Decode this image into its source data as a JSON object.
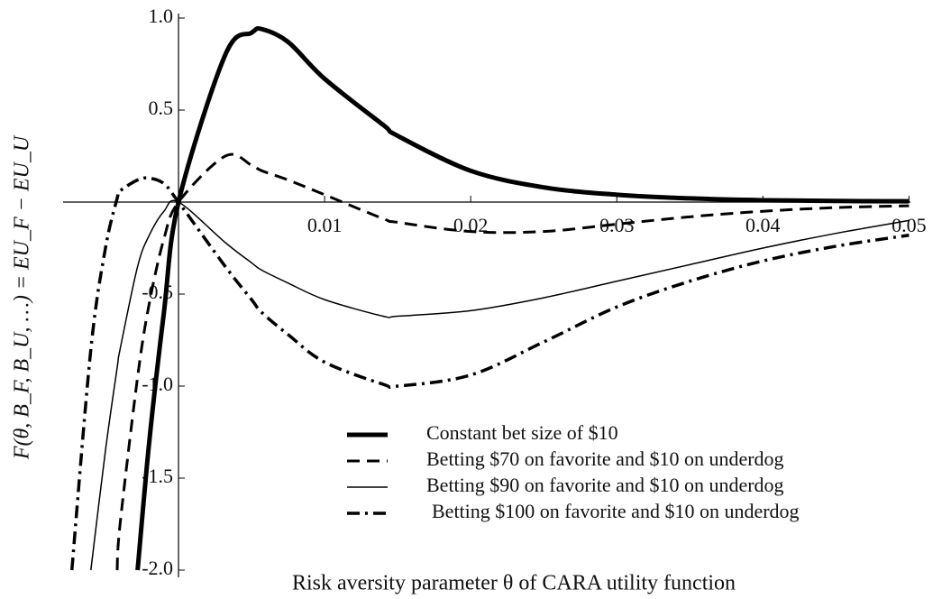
{
  "chart_data": {
    "type": "line",
    "x_label": "Risk aversity parameter θ of CARA utility function",
    "y_label": "F(θ, B_F, B_U, …) = EU_F − EU_U",
    "x": [
      -0.0073,
      -0.006,
      -0.005,
      -0.0042,
      -0.004,
      -0.0028,
      -0.002,
      -0.001,
      0,
      0.0032,
      0.005,
      0.0057,
      0.0075,
      0.01,
      0.014,
      0.015,
      0.02,
      0.025,
      0.03,
      0.035,
      0.04,
      0.045,
      0.05
    ],
    "series": [
      {
        "name": "Constant  bet size of $10",
        "color": "#000000",
        "width": 5,
        "dash": "none",
        "values": [
          null,
          null,
          null,
          null,
          null,
          -2.0,
          -1.3,
          -0.6,
          0,
          0.8,
          0.92,
          0.94,
          0.87,
          0.67,
          0.42,
          0.36,
          0.17,
          0.08,
          0.04,
          0.02,
          0.01,
          0.006,
          0.004
        ]
      },
      {
        "name": "Betting $70 on favorite and $10 on underdog",
        "color": "#000000",
        "width": 3,
        "dash": "14 8",
        "values": [
          null,
          null,
          null,
          -2.0,
          -1.75,
          -0.95,
          -0.55,
          -0.2,
          0,
          0.25,
          0.2,
          0.17,
          0.12,
          0.04,
          -0.09,
          -0.11,
          -0.16,
          -0.16,
          -0.12,
          -0.08,
          -0.05,
          -0.03,
          -0.02
        ]
      },
      {
        "name": "Betting $90 on favorite and $10 on underdog",
        "color": "#000000",
        "width": 1.5,
        "dash": "none",
        "values": [
          null,
          -2.0,
          -1.35,
          -0.9,
          -0.8,
          -0.35,
          -0.18,
          -0.05,
          0,
          -0.22,
          -0.33,
          -0.37,
          -0.44,
          -0.53,
          -0.62,
          -0.62,
          -0.59,
          -0.52,
          -0.43,
          -0.34,
          -0.25,
          -0.17,
          -0.1
        ]
      },
      {
        "name": "Betting $100 on favorite and $10 on underdog",
        "color": "#000000",
        "width": 3.5,
        "dash": "14 6 3 6",
        "values": [
          -2.0,
          -0.8,
          -0.25,
          0.02,
          0.06,
          0.12,
          0.13,
          0.1,
          0,
          -0.35,
          -0.53,
          -0.6,
          -0.72,
          -0.87,
          -0.99,
          -1.0,
          -0.94,
          -0.76,
          -0.57,
          -0.43,
          -0.32,
          -0.24,
          -0.18
        ]
      }
    ],
    "xlim": [
      -0.0079,
      0.0501
    ],
    "ylim": [
      -2,
      1
    ],
    "xticks": [
      0.01,
      0.02,
      0.03,
      0.04,
      0.05
    ],
    "yticks": [
      {
        "value": 1,
        "label": "1.0"
      },
      0.5,
      -0.5,
      {
        "value": -1,
        "label": "-1.0"
      },
      -1.5,
      {
        "value": -2,
        "label": "-2.0"
      }
    ],
    "grid": false,
    "legend": "lower center"
  }
}
